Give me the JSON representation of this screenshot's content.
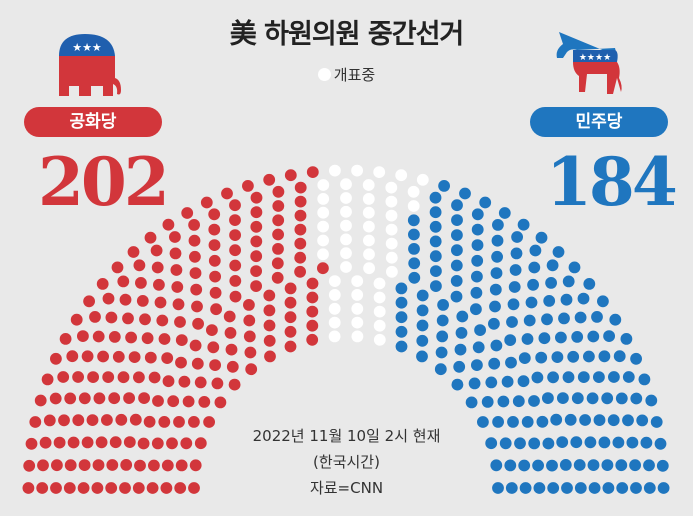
{
  "title": "美 하원의원 중간선거",
  "legend": {
    "label": "개표중"
  },
  "colors": {
    "republican": "#d2363b",
    "democrat": "#1f76bf",
    "counting": "#ffffff",
    "background": "#e9e9e9"
  },
  "parties": {
    "republican": {
      "label": "공화당",
      "seats": "202",
      "icon": "elephant-icon"
    },
    "democrat": {
      "label": "민주당",
      "seats": "184",
      "icon": "donkey-icon"
    }
  },
  "footer": {
    "date": "2022년 11월 10일 2시 현재",
    "tz": "(한국시간)",
    "source": "자료=CNN"
  },
  "chart_data": {
    "type": "parliament",
    "title": "美 하원의원 중간선거",
    "total_seats": 435,
    "series": [
      {
        "name": "공화당",
        "values": [
          202
        ],
        "color": "#d2363b"
      },
      {
        "name": "개표중",
        "values": [
          49
        ],
        "color": "#ffffff"
      },
      {
        "name": "민주당",
        "values": [
          184
        ],
        "color": "#1f76bf"
      }
    ]
  }
}
